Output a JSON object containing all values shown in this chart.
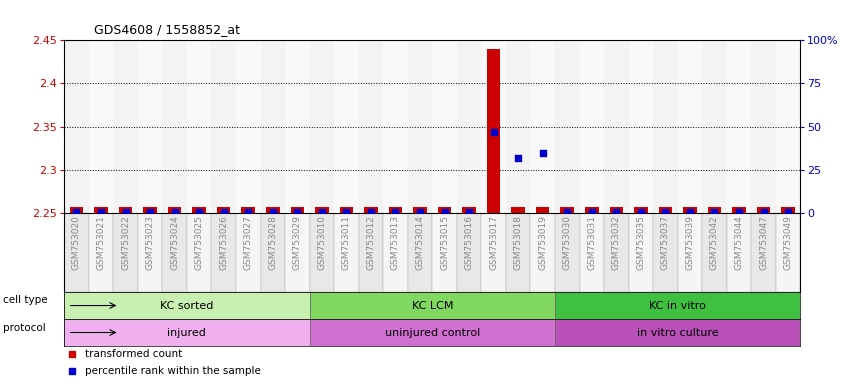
{
  "title": "GDS4608 / 1558852_at",
  "samples": [
    "GSM753020",
    "GSM753021",
    "GSM753022",
    "GSM753023",
    "GSM753024",
    "GSM753025",
    "GSM753026",
    "GSM753027",
    "GSM753028",
    "GSM753029",
    "GSM753010",
    "GSM753011",
    "GSM753012",
    "GSM753013",
    "GSM753014",
    "GSM753015",
    "GSM753016",
    "GSM753017",
    "GSM753018",
    "GSM753019",
    "GSM753030",
    "GSM753031",
    "GSM753032",
    "GSM753035",
    "GSM753037",
    "GSM753039",
    "GSM753042",
    "GSM753044",
    "GSM753047",
    "GSM753049"
  ],
  "transformed_count": [
    2.257,
    2.257,
    2.257,
    2.257,
    2.257,
    2.257,
    2.257,
    2.257,
    2.257,
    2.257,
    2.257,
    2.257,
    2.257,
    2.257,
    2.257,
    2.257,
    2.257,
    2.44,
    2.257,
    2.257,
    2.257,
    2.257,
    2.257,
    2.257,
    2.257,
    2.257,
    2.257,
    2.257,
    2.257,
    2.257
  ],
  "percentile_rank": [
    0.3,
    0.3,
    0.3,
    0.3,
    0.3,
    0.3,
    0.3,
    0.3,
    0.3,
    0.3,
    0.3,
    0.3,
    0.3,
    0.3,
    0.3,
    0.3,
    0.3,
    47,
    32,
    35,
    0.3,
    0.3,
    0.3,
    0.3,
    0.3,
    0.3,
    0.3,
    0.3,
    0.3,
    0.3
  ],
  "ylim_left": [
    2.25,
    2.45
  ],
  "ylim_right": [
    0,
    100
  ],
  "yticks_left": [
    2.25,
    2.3,
    2.35,
    2.4,
    2.45
  ],
  "yticks_right": [
    0,
    25,
    50,
    75,
    100
  ],
  "ytick_labels_right": [
    "0",
    "25",
    "50",
    "75",
    "100%"
  ],
  "grid_lines": [
    2.3,
    2.35,
    2.4
  ],
  "groups": [
    {
      "label": "KC sorted",
      "start": 0,
      "end": 10,
      "color": "#c8f0b0"
    },
    {
      "label": "KC LCM",
      "start": 10,
      "end": 20,
      "color": "#80d860"
    },
    {
      "label": "KC in vitro",
      "start": 20,
      "end": 30,
      "color": "#40c040"
    }
  ],
  "protocols": [
    {
      "label": "injured",
      "start": 0,
      "end": 10,
      "color": "#f0b0f0"
    },
    {
      "label": "uninjured control",
      "start": 10,
      "end": 20,
      "color": "#d070d0"
    },
    {
      "label": "in vitro culture",
      "start": 20,
      "end": 30,
      "color": "#b850b8"
    }
  ],
  "bar_color": "#cc0000",
  "dot_color": "#0000cc",
  "bar_width": 0.55,
  "dot_size": 18,
  "bg_color": "#ffffff",
  "axis_color_left": "#cc0000",
  "axis_color_right": "#0000cc",
  "tick_label_color": "#888888",
  "col_bg_even": "#e8e8e8",
  "col_bg_odd": "#f5f5f5",
  "legend_items": [
    {
      "label": "transformed count",
      "color": "#cc0000"
    },
    {
      "label": "percentile rank within the sample",
      "color": "#0000cc"
    }
  ],
  "group_row_label": "cell type",
  "protocol_row_label": "protocol"
}
